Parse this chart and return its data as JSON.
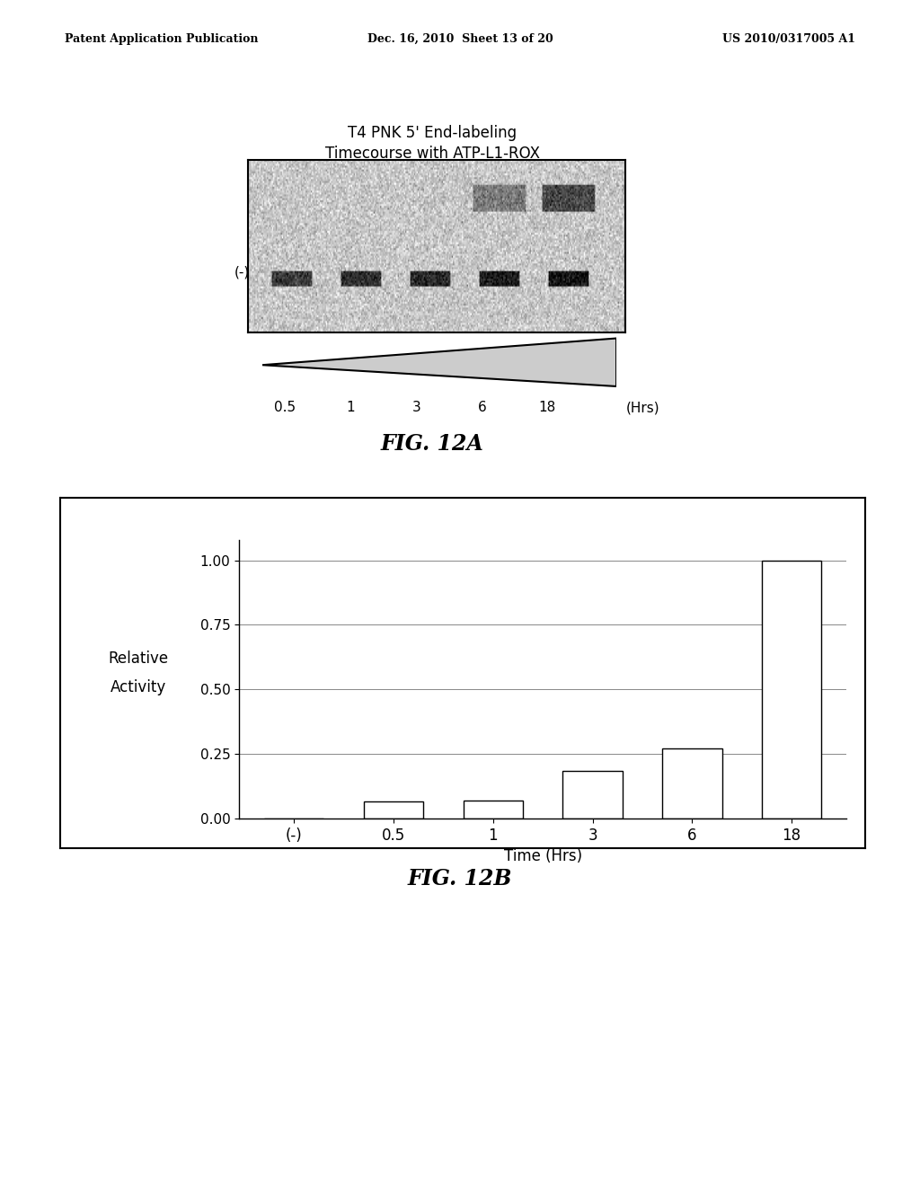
{
  "header_left": "Patent Application Publication",
  "header_center": "Dec. 16, 2010  Sheet 13 of 20",
  "header_right": "US 2010/0317005 A1",
  "fig12a_title_line1": "T4 PNK 5' End-labeling",
  "fig12a_title_line2": "Timecourse with ATP-L1-ROX",
  "fig12a_label": "(-)",
  "fig12a_xlabel_vals": [
    "0.5",
    "1",
    "3",
    "6",
    "18"
  ],
  "fig12a_xlabel_unit": "(Hrs)",
  "fig12a_caption": "FIG. 12A",
  "fig12b_categories": [
    "(-)",
    "0.5",
    "1",
    "3",
    "6",
    "18"
  ],
  "fig12b_values": [
    0.0,
    0.065,
    0.07,
    0.185,
    0.27,
    1.0
  ],
  "fig12b_ylabel_line1": "Relative",
  "fig12b_ylabel_line2": "Activity",
  "fig12b_xlabel": "Time (Hrs)",
  "fig12b_yticks": [
    0.0,
    0.25,
    0.5,
    0.75,
    1.0
  ],
  "fig12b_caption": "FIG. 12B",
  "bar_color": "#ffffff",
  "bar_edgecolor": "#000000",
  "background_color": "#ffffff",
  "gel_image_noise_seed": 42
}
